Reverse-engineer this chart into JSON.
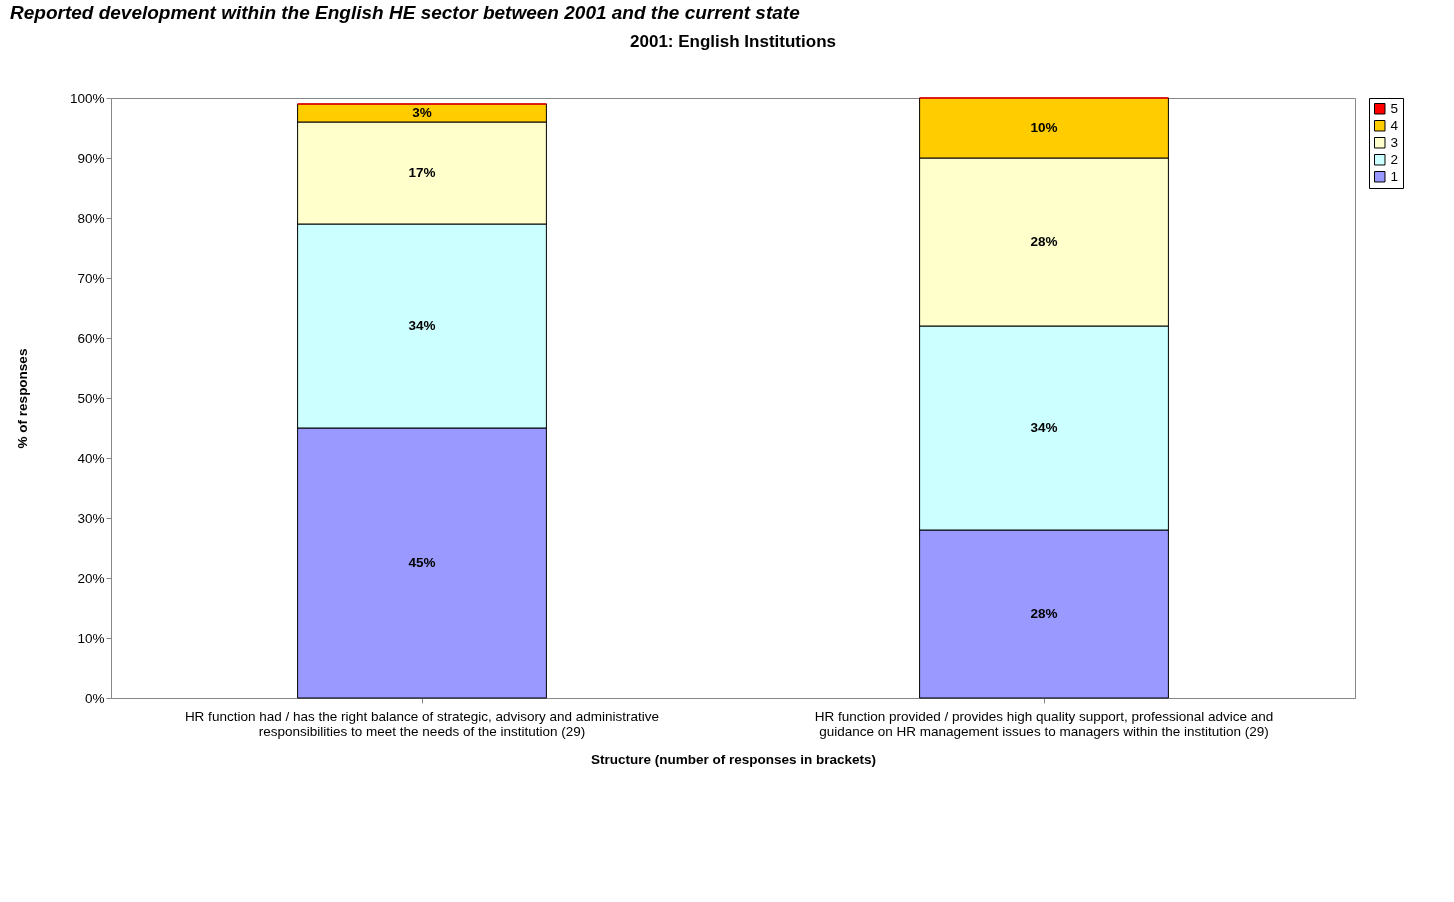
{
  "chart_data": {
    "type": "bar",
    "stacked": true,
    "title": "2001: English Institutions",
    "annotations": [
      "Reported development within the English HE sector between 2001 and the current state"
    ],
    "xlabel": "Structure (number of responses in brackets)",
    "ylabel": "% of responses",
    "categories": [
      "HR function had / has the right balance of strategic, advisory and administrative responsibilities to meet the needs of the institution (29)",
      "HR function provided / provides high quality support, professional advice and guidance on HR management issues to managers within the institution (29)"
    ],
    "series": [
      {
        "name": "1",
        "color": "#9999ff",
        "values": [
          45,
          28
        ],
        "value_labels": [
          "45%",
          "28%"
        ]
      },
      {
        "name": "2",
        "color": "#ccffff",
        "values": [
          34,
          34
        ],
        "value_labels": [
          "34%",
          "34%"
        ]
      },
      {
        "name": "3",
        "color": "#ffffcc",
        "values": [
          17,
          28
        ],
        "value_labels": [
          "17%",
          "28%"
        ]
      },
      {
        "name": "4",
        "color": "#ffcc00",
        "values": [
          3,
          10
        ],
        "value_labels": [
          "3%",
          "10%"
        ]
      },
      {
        "name": "5",
        "color": "#ff0000",
        "values": [
          0,
          0
        ],
        "value_labels": [
          null,
          null
        ]
      }
    ],
    "ylim": [
      0,
      100
    ],
    "yticks": [
      {
        "value": 0,
        "label": "0%"
      },
      {
        "value": 10,
        "label": "10%"
      },
      {
        "value": 20,
        "label": "20%"
      },
      {
        "value": 30,
        "label": "30%"
      },
      {
        "value": 40,
        "label": "40%"
      },
      {
        "value": 50,
        "label": "50%"
      },
      {
        "value": 60,
        "label": "60%"
      },
      {
        "value": 70,
        "label": "70%"
      },
      {
        "value": 80,
        "label": "80%"
      },
      {
        "value": 90,
        "label": "90%"
      },
      {
        "value": 100,
        "label": "100%"
      }
    ],
    "grid": false,
    "legend": "right"
  }
}
